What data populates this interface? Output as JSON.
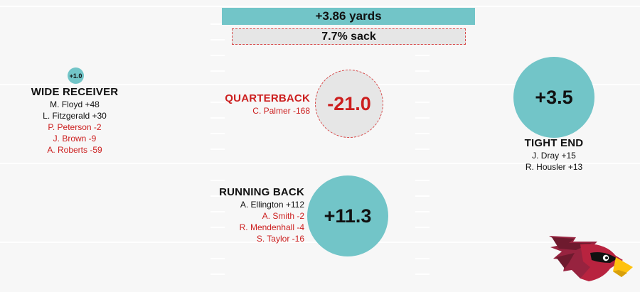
{
  "top_stats": {
    "yards": "+3.86 yards",
    "sack": "7.7% sack"
  },
  "wide_receiver": {
    "value": "+1.0",
    "title": "WIDE RECEIVER",
    "players": [
      {
        "text": "M. Floyd +48",
        "color": "#111111"
      },
      {
        "text": "L. Fitzgerald +30",
        "color": "#111111"
      },
      {
        "text": "P. Peterson -2",
        "color": "#cc1f1f"
      },
      {
        "text": "J. Brown -9",
        "color": "#cc1f1f"
      },
      {
        "text": "A. Roberts -59",
        "color": "#cc1f1f"
      }
    ]
  },
  "quarterback": {
    "value": "-21.0",
    "title": "QUARTERBACK",
    "players": [
      {
        "text": "C. Palmer -168",
        "color": "#cc1f1f"
      }
    ]
  },
  "tight_end": {
    "value": "+3.5",
    "title": "TIGHT END",
    "players": [
      {
        "text": "J. Dray +15",
        "color": "#111111"
      },
      {
        "text": "R. Housler +13",
        "color": "#111111"
      }
    ]
  },
  "running_back": {
    "value": "+11.3",
    "title": "RUNNING BACK",
    "players": [
      {
        "text": "A. Ellington +112",
        "color": "#111111"
      },
      {
        "text": "A. Smith -2",
        "color": "#cc1f1f"
      },
      {
        "text": "R. Mendenhall -4",
        "color": "#cc1f1f"
      },
      {
        "text": "S. Taylor -16",
        "color": "#cc1f1f"
      }
    ]
  },
  "colors": {
    "positive": "#72c5c8",
    "negative": "#cc1f1f",
    "neutral_fill": "#e6e6e6"
  },
  "logo": {
    "icon": "cardinal-head-icon"
  }
}
